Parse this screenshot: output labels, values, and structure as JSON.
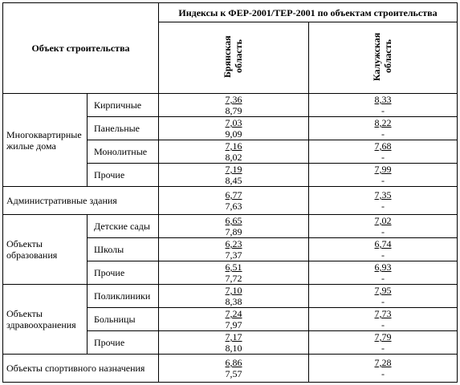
{
  "table": {
    "corner": "Объект строительства",
    "header": "Индексы к ФЕР-2001/ТЕР-2001 по объектам строительства",
    "columns": [
      "Брянская область",
      "Калужская область"
    ],
    "groups": [
      {
        "name": "Многоквартирные жилые дома",
        "rows": [
          {
            "name": "Кирпичные",
            "values": [
              [
                "7,36",
                "8,79"
              ],
              [
                "8,33",
                "-"
              ]
            ]
          },
          {
            "name": "Панельные",
            "values": [
              [
                "7,03",
                "9,09"
              ],
              [
                "8,22",
                "-"
              ]
            ]
          },
          {
            "name": "Монолитные",
            "values": [
              [
                "7,16",
                "8,02"
              ],
              [
                "7,68",
                "-"
              ]
            ]
          },
          {
            "name": "Прочие",
            "values": [
              [
                "7,19",
                "8,45"
              ],
              [
                "7,99",
                "-"
              ]
            ]
          }
        ]
      },
      {
        "name": "Административные здания",
        "values": [
          [
            "6,77",
            "7,63"
          ],
          [
            "7,35",
            "-"
          ]
        ]
      },
      {
        "name": "Объекты образования",
        "rows": [
          {
            "name": "Детские сады",
            "values": [
              [
                "6,65",
                "7,89"
              ],
              [
                "7,02",
                "-"
              ]
            ]
          },
          {
            "name": "Школы",
            "values": [
              [
                "6,23",
                "7,37"
              ],
              [
                "6,74",
                "-"
              ]
            ]
          },
          {
            "name": "Прочие",
            "values": [
              [
                "6,51",
                "7,72"
              ],
              [
                "6,93",
                "-"
              ]
            ]
          }
        ]
      },
      {
        "name": "Объекты здравоохранения",
        "rows": [
          {
            "name": "Поликлиники",
            "values": [
              [
                "7,10",
                "8,38"
              ],
              [
                "7,95",
                "-"
              ]
            ]
          },
          {
            "name": "Больницы",
            "values": [
              [
                "7,24",
                "7,97"
              ],
              [
                "7,73",
                "-"
              ]
            ]
          },
          {
            "name": "Прочие",
            "values": [
              [
                "7,17",
                "8,10"
              ],
              [
                "7,79",
                "-"
              ]
            ]
          }
        ]
      },
      {
        "name": "Объекты спортивного назначения",
        "values": [
          [
            "6,86",
            "7,57"
          ],
          [
            "7,28",
            "-"
          ]
        ]
      }
    ]
  }
}
